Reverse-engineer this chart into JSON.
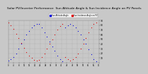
{
  "title": "Solar PV/Inverter Performance  Sun Altitude Angle & Sun Incidence Angle on PV Panels",
  "title_fontsize": 3.2,
  "background_color": "#c8c8c8",
  "plot_bg_color": "#c8c8c8",
  "grid_color": "#aaaaaa",
  "ylim": [
    0,
    90
  ],
  "yticks": [
    10,
    20,
    30,
    40,
    50,
    60,
    70,
    80,
    90
  ],
  "legend": [
    {
      "label": "Sun Altitude Angle",
      "color": "#0000cc"
    },
    {
      "label": "Sun Incidence Angle on PV",
      "color": "#cc0000"
    },
    {
      "label": "Panels",
      "color": "#880000"
    }
  ],
  "series_blue": {
    "color": "#0000dd",
    "points": [
      [
        0,
        5
      ],
      [
        2,
        8
      ],
      [
        4,
        12
      ],
      [
        6,
        20
      ],
      [
        8,
        30
      ],
      [
        10,
        40
      ],
      [
        12,
        50
      ],
      [
        14,
        60
      ],
      [
        16,
        68
      ],
      [
        18,
        75
      ],
      [
        20,
        80
      ],
      [
        22,
        83
      ],
      [
        24,
        82
      ],
      [
        26,
        75
      ],
      [
        28,
        65
      ],
      [
        30,
        55
      ],
      [
        32,
        45
      ],
      [
        34,
        35
      ],
      [
        36,
        25
      ],
      [
        38,
        15
      ],
      [
        40,
        8
      ],
      [
        42,
        3
      ],
      [
        44,
        75
      ],
      [
        46,
        80
      ],
      [
        48,
        82
      ],
      [
        50,
        80
      ],
      [
        52,
        75
      ],
      [
        54,
        68
      ],
      [
        56,
        60
      ],
      [
        58,
        50
      ],
      [
        60,
        40
      ],
      [
        62,
        28
      ],
      [
        64,
        18
      ],
      [
        66,
        8
      ],
      [
        68,
        3
      ]
    ]
  },
  "series_red": {
    "color": "#dd0000",
    "points": [
      [
        0,
        85
      ],
      [
        2,
        80
      ],
      [
        4,
        72
      ],
      [
        6,
        62
      ],
      [
        8,
        52
      ],
      [
        10,
        42
      ],
      [
        12,
        32
      ],
      [
        14,
        22
      ],
      [
        16,
        15
      ],
      [
        18,
        10
      ],
      [
        20,
        6
      ],
      [
        22,
        4
      ],
      [
        24,
        6
      ],
      [
        26,
        12
      ],
      [
        28,
        20
      ],
      [
        30,
        30
      ],
      [
        32,
        40
      ],
      [
        34,
        50
      ],
      [
        36,
        60
      ],
      [
        38,
        70
      ],
      [
        40,
        78
      ],
      [
        42,
        83
      ],
      [
        44,
        12
      ],
      [
        46,
        8
      ],
      [
        48,
        5
      ],
      [
        50,
        8
      ],
      [
        52,
        12
      ],
      [
        54,
        20
      ],
      [
        56,
        30
      ],
      [
        58,
        40
      ],
      [
        60,
        52
      ],
      [
        62,
        65
      ],
      [
        64,
        75
      ],
      [
        66,
        82
      ],
      [
        68,
        85
      ]
    ]
  },
  "xrange": [
    0,
    70
  ],
  "xtick_count": 18
}
